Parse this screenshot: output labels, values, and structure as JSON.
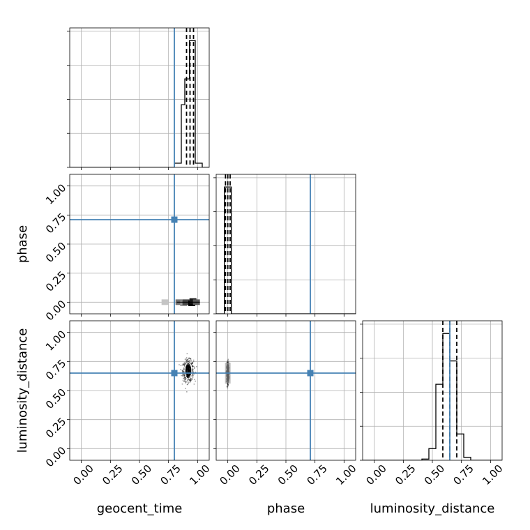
{
  "chart_data": {
    "type": "corner",
    "parameters": [
      "geocent_time",
      "phase",
      "luminosity_distance"
    ],
    "axis_range": [
      -0.1,
      1.1
    ],
    "ticks": [
      0.0,
      0.25,
      0.5,
      0.75,
      1.0
    ],
    "tick_labels": [
      "0.00",
      "0.25",
      "0.50",
      "0.75",
      "1.00"
    ],
    "grid": true,
    "truth_color": "#4682b4",
    "truths": {
      "geocent_time": 0.8,
      "phase": 0.71,
      "luminosity_distance": 0.65
    },
    "histograms": [
      {
        "parameter": "geocent_time",
        "bin_edges": [
          0.8,
          0.86,
          0.89,
          0.93,
          0.98,
          1.04
        ],
        "counts": [
          0.06,
          0.9,
          1.27,
          1.82,
          0.06
        ],
        "quantiles": [
          0.905,
          0.935,
          0.965
        ]
      },
      {
        "parameter": "phase",
        "bin_edges": [
          -0.03,
          0.0,
          0.03
        ],
        "counts": [
          1.0,
          1.0
        ],
        "quantiles": [
          -0.02,
          0.0,
          0.02
        ]
      },
      {
        "parameter": "luminosity_distance",
        "bin_edges": [
          0.41,
          0.47,
          0.53,
          0.59,
          0.65,
          0.71,
          0.77,
          0.83,
          0.89
        ],
        "counts": [
          0.02,
          0.2,
          1.3,
          2.17,
          1.7,
          0.45,
          0.05,
          0.0
        ],
        "quantiles": [
          0.59,
          0.65,
          0.71
        ]
      }
    ],
    "scatter_panels": [
      {
        "x": "geocent_time",
        "y": "phase",
        "density_cells": [
          {
            "x": 0.72,
            "y": 0.0,
            "level": 0.15
          },
          {
            "x": 0.84,
            "y": 0.0,
            "level": 0.5
          },
          {
            "x": 0.88,
            "y": -0.01,
            "level": 0.35
          },
          {
            "x": 0.9,
            "y": 0.0,
            "level": 0.7
          },
          {
            "x": 0.95,
            "y": -0.01,
            "level": 1.0
          },
          {
            "x": 0.96,
            "y": 0.01,
            "level": 0.9
          },
          {
            "x": 0.99,
            "y": 0.0,
            "level": 0.6
          }
        ]
      },
      {
        "x": "geocent_time",
        "y": "luminosity_distance",
        "cloud_center": [
          0.92,
          0.67
        ],
        "cloud_spread": [
          0.05,
          0.1
        ],
        "contour_levels": [
          0.6,
          0.85
        ]
      },
      {
        "x": "phase",
        "y": "luminosity_distance",
        "cloud_center": [
          0.0,
          0.65
        ],
        "cloud_spread": [
          0.01,
          0.09
        ]
      }
    ]
  }
}
